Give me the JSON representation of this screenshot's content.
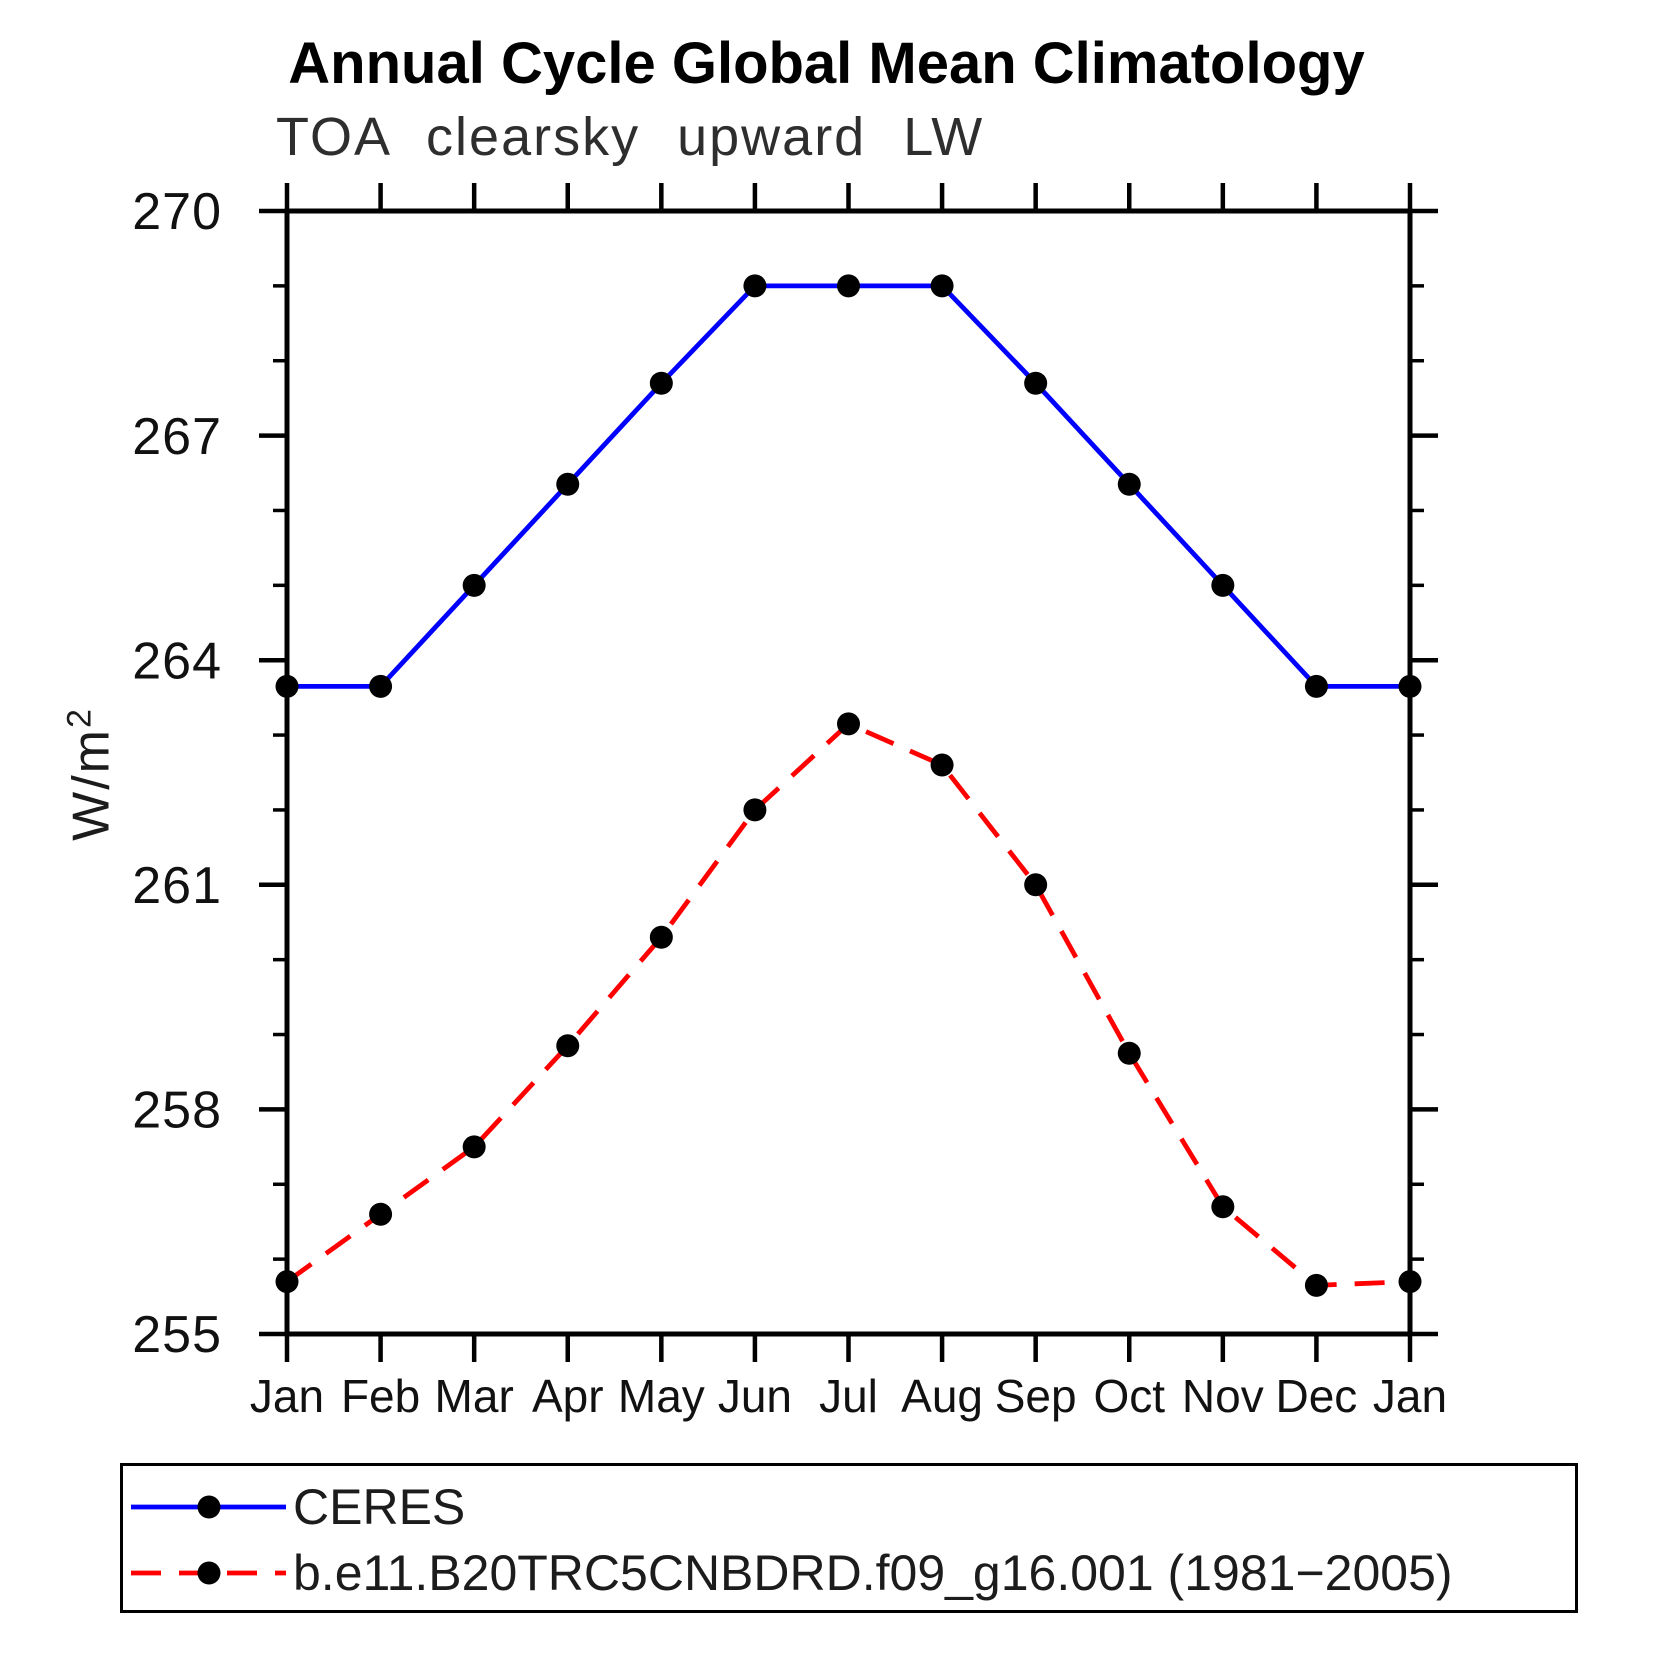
{
  "title": "Annual Cycle Global Mean Climatology",
  "subtitle": "TOA clearsky upward LW",
  "chart_data": {
    "type": "line",
    "title": "Annual Cycle Global Mean Climatology",
    "subtitle": "TOA clearsky upward LW",
    "ylabel": {
      "base": "W/m",
      "sup": "2"
    },
    "categories": [
      "Jan",
      "Feb",
      "Mar",
      "Apr",
      "May",
      "Jun",
      "Jul",
      "Aug",
      "Sep",
      "Oct",
      "Nov",
      "Dec",
      "Jan"
    ],
    "ylim": [
      255,
      270
    ],
    "yticks": {
      "major": [
        255,
        258,
        261,
        264,
        267,
        270
      ],
      "minor_step": 1
    },
    "grid": false,
    "legend_position": "bottom",
    "series": [
      {
        "name": "CERES",
        "color": "#0000ff",
        "style": "solid",
        "marker": "filled-circle",
        "marker_color": "#000000",
        "values": [
          263.65,
          263.65,
          265.0,
          266.35,
          267.7,
          269.0,
          269.0,
          269.0,
          267.7,
          266.35,
          265.0,
          263.65,
          263.65
        ]
      },
      {
        "name": "b.e11.B20TRC5CNBDRD.f09_g16.001 (1981−2005)",
        "color": "#ff0000",
        "style": "dashed",
        "marker": "filled-circle",
        "marker_color": "#000000",
        "values": [
          255.7,
          256.6,
          257.5,
          258.85,
          260.3,
          262.0,
          263.15,
          262.6,
          261.0,
          258.75,
          256.7,
          255.65,
          255.7
        ]
      }
    ]
  }
}
